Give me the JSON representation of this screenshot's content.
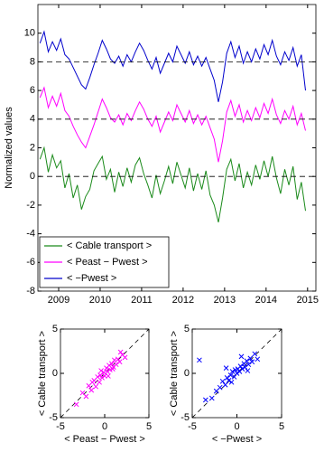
{
  "chart_data": [
    {
      "type": "line",
      "ylabel": "Normalized values",
      "x": [
        2008.55,
        2008.65,
        2008.75,
        2008.85,
        2008.95,
        2009.05,
        2009.15,
        2009.25,
        2009.35,
        2009.45,
        2009.55,
        2009.65,
        2009.75,
        2009.85,
        2009.95,
        2010.05,
        2010.15,
        2010.25,
        2010.35,
        2010.45,
        2010.55,
        2010.65,
        2010.75,
        2010.85,
        2010.95,
        2011.05,
        2011.15,
        2011.25,
        2011.35,
        2011.45,
        2011.55,
        2011.65,
        2011.75,
        2011.85,
        2011.95,
        2012.05,
        2012.15,
        2012.25,
        2012.35,
        2012.45,
        2012.55,
        2012.65,
        2012.75,
        2012.85,
        2012.95,
        2013.05,
        2013.15,
        2013.25,
        2013.35,
        2013.45,
        2013.55,
        2013.65,
        2013.75,
        2013.85,
        2013.95,
        2014.05,
        2014.15,
        2014.25,
        2014.35,
        2014.45,
        2014.55,
        2014.65,
        2014.75,
        2014.85,
        2014.95
      ],
      "series": [
        {
          "name": "< Cable transport >",
          "color": "#1a8a1a",
          "values": [
            1.2,
            2.0,
            0.3,
            1.5,
            0.6,
            1.1,
            -0.8,
            0.2,
            -1.5,
            -0.6,
            -2.3,
            -1.4,
            -0.9,
            0.4,
            0.9,
            1.4,
            -0.2,
            0.5,
            -1.1,
            0.3,
            -0.7,
            0.6,
            -0.4,
            0.8,
            1.3,
            0.2,
            -0.6,
            -1.5,
            0.1,
            -1.2,
            -0.3,
            0.7,
            -0.5,
            1.0,
            0.1,
            -0.8,
            0.6,
            -1.0,
            0.2,
            -0.9,
            0.4,
            -1.3,
            -2.0,
            -3.2,
            -1.5,
            0.5,
            1.2,
            -0.3,
            0.9,
            -0.8,
            0.3,
            -0.6,
            0.8,
            -0.2,
            1.1,
            0.0,
            1.4,
            -0.1,
            -1.2,
            0.5,
            -0.6,
            0.7,
            -1.6,
            -0.4,
            -2.4
          ]
        },
        {
          "name": "< Peast − Pwest >",
          "color": "#ff00ff",
          "values": [
            5.5,
            6.2,
            4.8,
            5.6,
            4.9,
            5.8,
            4.6,
            4.2,
            3.5,
            2.9,
            2.4,
            2.0,
            2.8,
            3.6,
            4.5,
            5.4,
            4.8,
            4.1,
            3.8,
            4.3,
            3.6,
            4.4,
            3.9,
            4.6,
            5.2,
            4.7,
            4.0,
            3.5,
            4.2,
            3.1,
            3.8,
            4.5,
            3.9,
            5.0,
            4.4,
            3.8,
            4.6,
            3.7,
            4.3,
            3.6,
            4.2,
            3.4,
            2.6,
            1.0,
            2.5,
            4.5,
            5.3,
            4.2,
            5.0,
            3.8,
            4.6,
            3.9,
            4.8,
            4.1,
            5.1,
            4.4,
            5.4,
            4.3,
            3.7,
            4.6,
            4.0,
            4.9,
            3.6,
            4.4,
            3.2
          ]
        },
        {
          "name": "< −Pwest >",
          "color": "#0000cc",
          "values": [
            9.3,
            10.1,
            8.7,
            9.4,
            8.8,
            9.6,
            8.5,
            8.2,
            7.6,
            7.0,
            6.4,
            6.1,
            6.9,
            7.8,
            8.6,
            9.5,
            8.9,
            8.2,
            7.9,
            8.4,
            7.7,
            8.5,
            8.0,
            8.7,
            9.3,
            8.8,
            8.1,
            7.5,
            8.3,
            7.2,
            7.9,
            8.6,
            8.0,
            9.1,
            8.5,
            7.9,
            8.7,
            7.8,
            8.4,
            7.7,
            8.3,
            7.5,
            6.7,
            5.2,
            6.6,
            8.6,
            9.4,
            8.3,
            9.1,
            7.9,
            8.7,
            8.0,
            8.9,
            8.2,
            9.2,
            8.5,
            9.5,
            8.4,
            7.8,
            8.7,
            8.1,
            9.0,
            7.7,
            8.5,
            6.0
          ]
        }
      ],
      "hlines": [
        0,
        4,
        8
      ],
      "xlim": [
        2008.5,
        2015.2
      ],
      "xticks": [
        2009,
        2010,
        2011,
        2012,
        2013,
        2014,
        2015
      ],
      "ylim": [
        -8,
        12
      ],
      "yticks": [
        -8,
        -6,
        -4,
        -2,
        0,
        2,
        4,
        6,
        8,
        10
      ],
      "legend": "lower left"
    },
    {
      "type": "scatter",
      "xlabel": "< Peast − Pwest >",
      "ylabel": "< Cable transport >",
      "color": "#ff00ff",
      "diagonal": true,
      "x": [
        -3.2,
        -2.5,
        -2.1,
        -1.8,
        -1.5,
        -1.2,
        -1.0,
        -0.8,
        -0.6,
        -0.4,
        -0.3,
        -0.1,
        0.0,
        0.2,
        0.3,
        0.5,
        0.6,
        0.8,
        1.0,
        1.1,
        1.3,
        1.5,
        1.7,
        2.0,
        2.3,
        -0.5,
        0.4,
        0.9,
        -1.4,
        1.8
      ],
      "values": [
        -3.5,
        -2.2,
        -2.6,
        -1.4,
        -1.9,
        -0.8,
        -1.5,
        -0.4,
        -1.0,
        0.3,
        -0.5,
        0.1,
        -0.3,
        0.6,
        0.2,
        0.9,
        0.4,
        1.1,
        0.7,
        1.5,
        1.0,
        1.6,
        1.3,
        2.1,
        1.8,
        -0.2,
        -0.3,
        0.5,
        -1.0,
        2.4
      ],
      "xlim": [
        -5,
        5
      ],
      "xticks": [
        -5,
        0,
        5
      ],
      "ylim": [
        -5,
        5
      ],
      "yticks": [
        -5,
        0,
        5
      ]
    },
    {
      "type": "scatter",
      "xlabel": "< −Pwest >",
      "ylabel": "< Cable transport >",
      "color": "#0000ff",
      "diagonal": true,
      "x": [
        -4.2,
        -2.8,
        -2.3,
        -1.9,
        -1.6,
        -1.3,
        -1.1,
        -0.9,
        -0.7,
        -0.5,
        -0.3,
        -0.2,
        0.0,
        0.1,
        0.3,
        0.4,
        0.6,
        0.8,
        0.9,
        1.1,
        1.3,
        1.5,
        1.7,
        2.0,
        -3.5,
        -0.6,
        0.5,
        1.2,
        -1.2,
        2.3
      ],
      "values": [
        1.5,
        -2.8,
        -2.0,
        -1.6,
        -0.9,
        -1.3,
        -0.5,
        -0.8,
        -0.2,
        0.2,
        -0.4,
        0.4,
        0.0,
        0.5,
        0.2,
        0.8,
        0.5,
        1.1,
        0.7,
        1.4,
        1.0,
        1.7,
        1.3,
        2.2,
        -3.0,
        -1.0,
        1.9,
        0.3,
        0.6,
        1.6
      ],
      "xlim": [
        -5,
        5
      ],
      "xticks": [
        -5,
        0,
        5
      ],
      "ylim": [
        -5,
        5
      ],
      "yticks": [
        -5,
        0,
        5
      ]
    }
  ]
}
